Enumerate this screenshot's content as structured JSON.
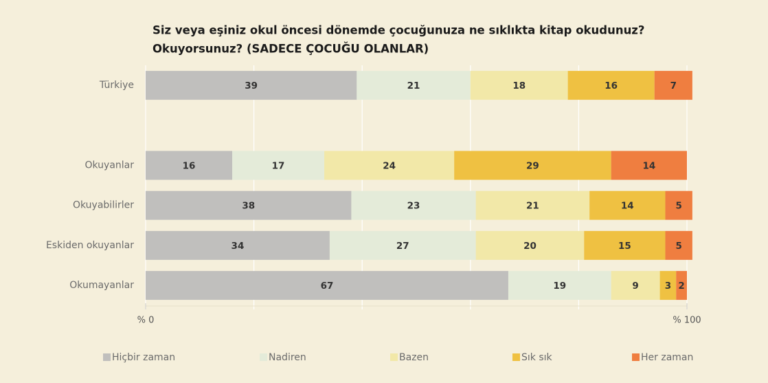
{
  "chart_data": {
    "type": "stacked-barh",
    "title": [
      "Siz veya eşiniz okul öncesi dönemde çocuğunuza ne sıklıkta kitap okudunuz?",
      "Okuyorsunuz? (SADECE ÇOCUĞU OLANLAR)"
    ],
    "categories": [
      "Türkiye",
      null,
      "Okuyanlar",
      "Okuyabilirler",
      "Eskiden okuyanlar",
      "Okumayanlar"
    ],
    "series": [
      {
        "name": "Hiçbir zaman",
        "color": "#c0bfbd",
        "values": [
          39,
          null,
          16,
          38,
          34,
          67
        ]
      },
      {
        "name": "Nadiren",
        "color": "#e4ebd9",
        "values": [
          21,
          null,
          17,
          23,
          27,
          19
        ]
      },
      {
        "name": "Bazen",
        "color": "#f2e8a8",
        "values": [
          18,
          null,
          24,
          21,
          20,
          9
        ]
      },
      {
        "name": "Sık sık",
        "color": "#efc142",
        "values": [
          16,
          null,
          29,
          14,
          15,
          3
        ]
      },
      {
        "name": "Her zaman",
        "color": "#ef7e40",
        "values": [
          7,
          null,
          14,
          5,
          5,
          2
        ]
      }
    ],
    "xlim": [
      0,
      100
    ],
    "xticks": [
      {
        "value": 0,
        "label": "% 0"
      },
      {
        "value": 100,
        "label": "% 100"
      }
    ],
    "xgrid": [
      0,
      20,
      40,
      60,
      80,
      100
    ],
    "legend": "bottom"
  }
}
